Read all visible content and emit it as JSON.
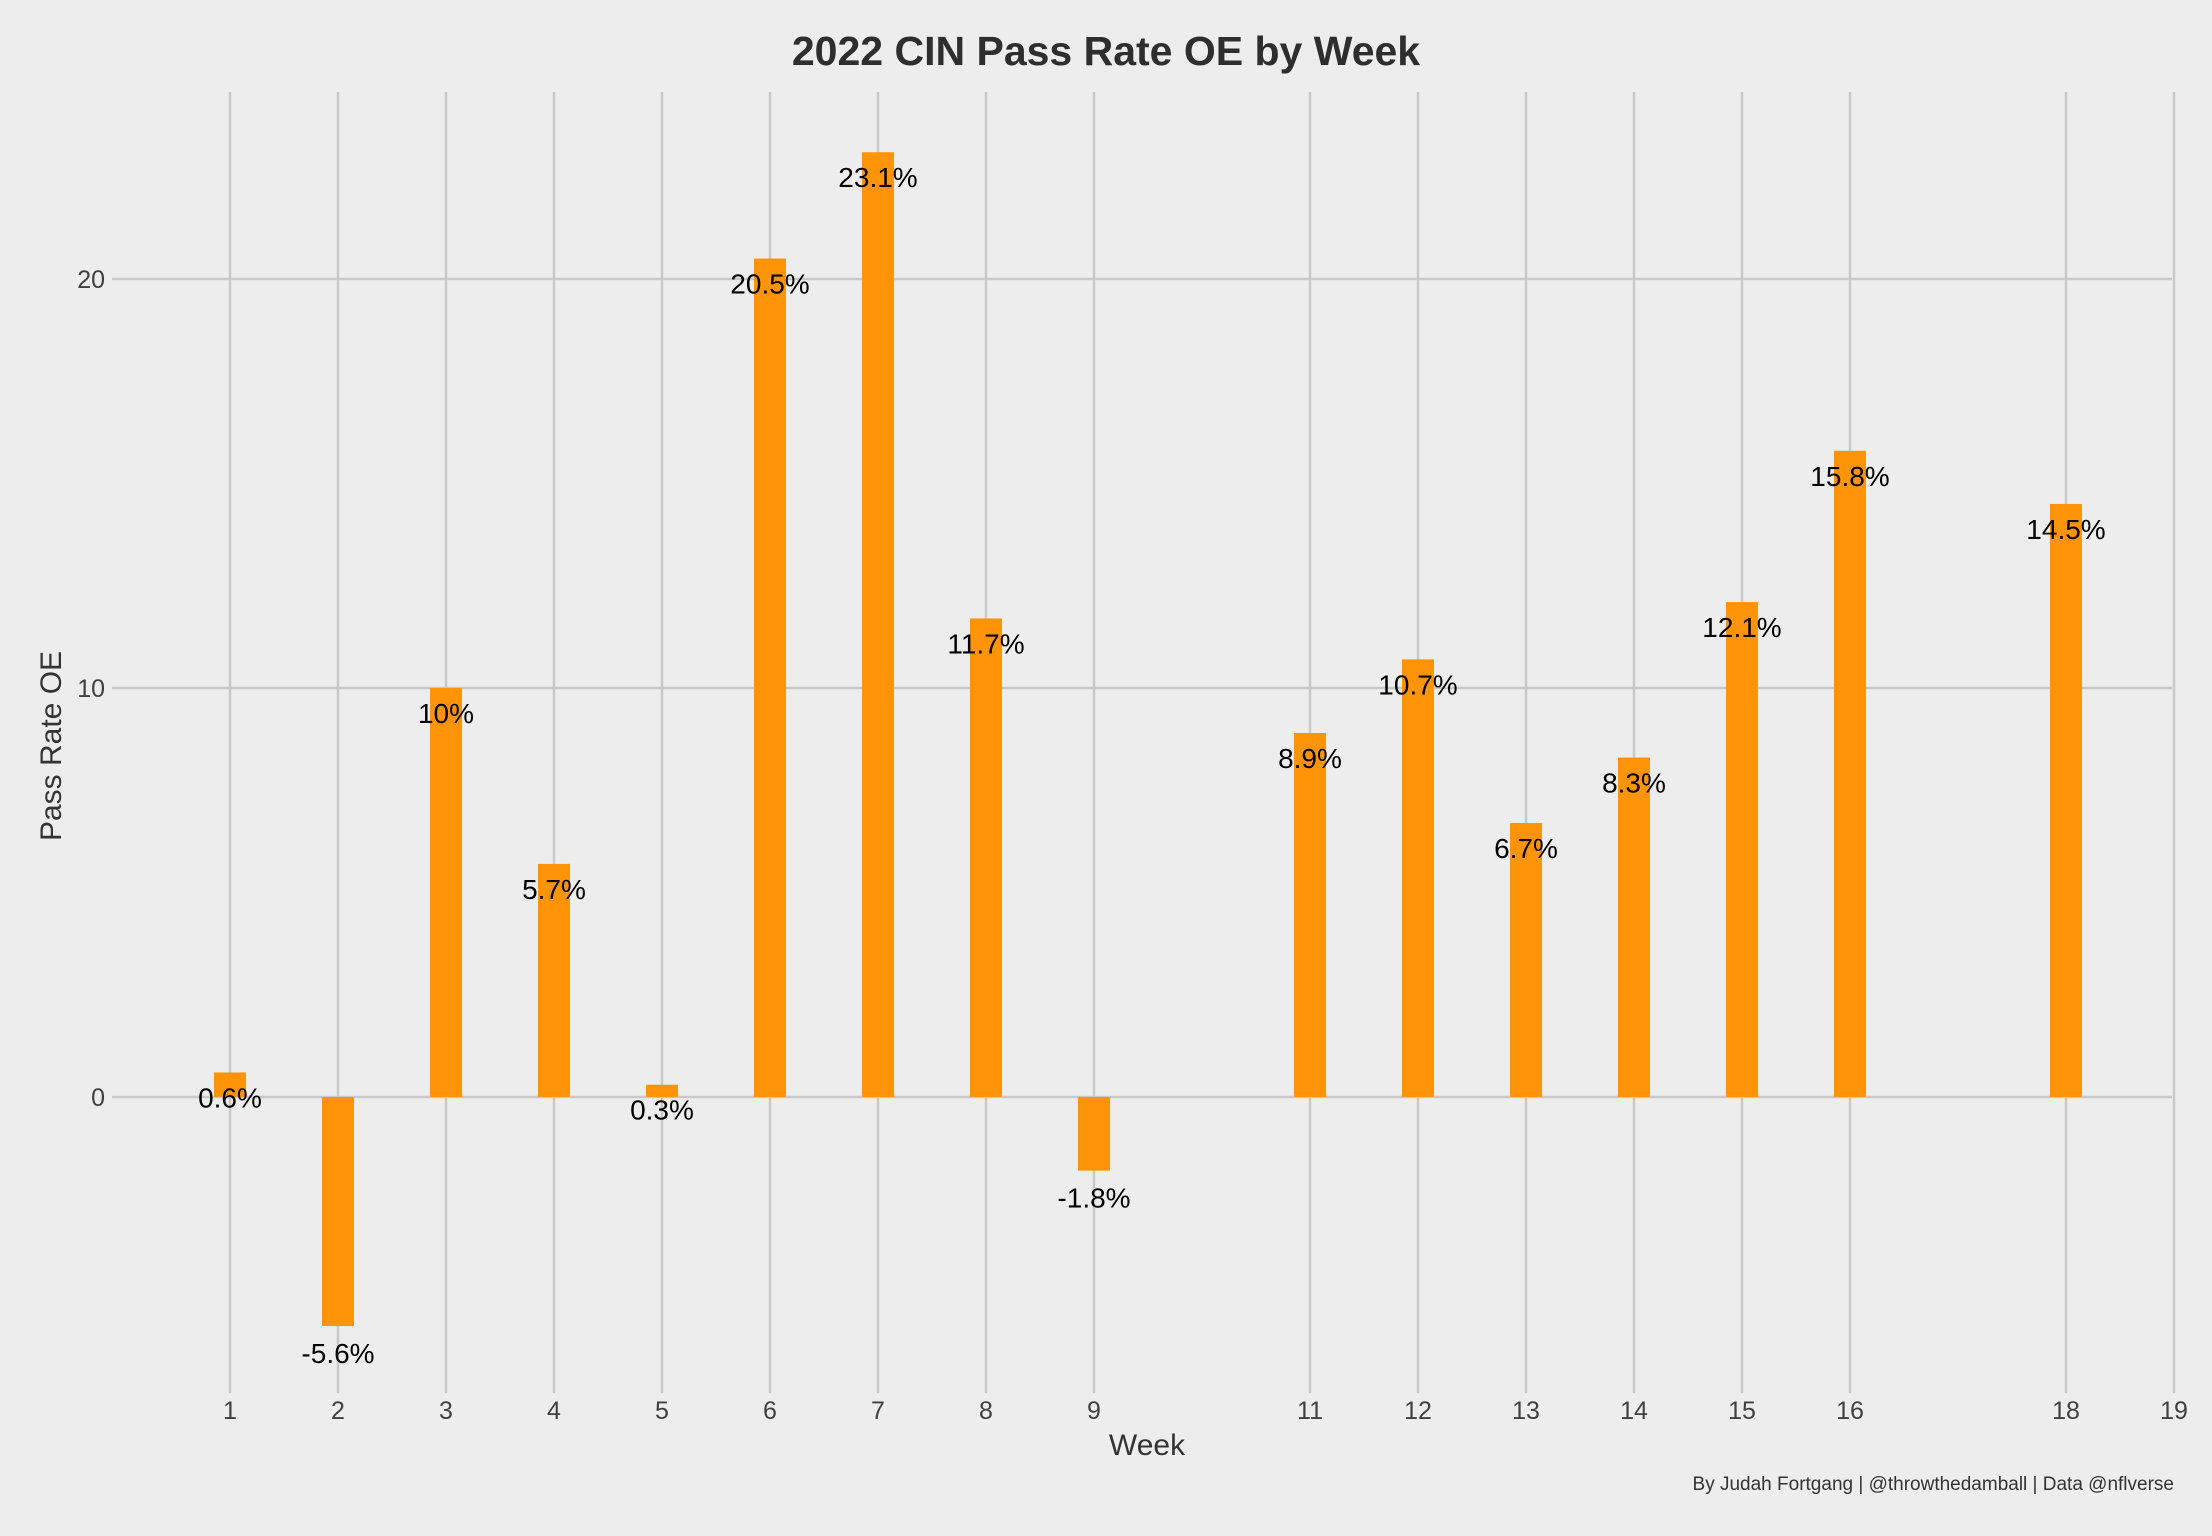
{
  "chart_data": {
    "type": "bar",
    "title": "2022 CIN Pass Rate OE by Week",
    "xlabel": "Week",
    "ylabel": "Pass Rate OE",
    "x": [
      1,
      2,
      3,
      4,
      5,
      6,
      7,
      8,
      9,
      11,
      12,
      13,
      14,
      15,
      16,
      18
    ],
    "values": [
      0.6,
      -5.6,
      10,
      5.7,
      0.3,
      20.5,
      23.1,
      11.7,
      -1.8,
      8.9,
      10.7,
      6.7,
      8.3,
      12.1,
      15.8,
      14.5
    ],
    "labels": [
      "0.6%",
      "-5.6%",
      "10%",
      "5.7%",
      "0.3%",
      "20.5%",
      "23.1%",
      "11.7%",
      "-1.8%",
      "8.9%",
      "10.7%",
      "6.7%",
      "8.3%",
      "12.1%",
      "15.8%",
      "14.5%"
    ],
    "x_ticks": [
      "1",
      "2",
      "3",
      "4",
      "5",
      "6",
      "7",
      "8",
      "9",
      "11",
      "12",
      "13",
      "14",
      "15",
      "16",
      "18",
      "19"
    ],
    "y_ticks": [
      "0",
      "10",
      "20"
    ],
    "xlim": [
      0,
      19
    ],
    "ylim": [
      -7.2,
      26.2
    ],
    "grid": true,
    "bar_color": "#ff9409",
    "background_color": "#ededed",
    "grid_color": "#c9c9c9"
  },
  "caption": "By Judah Fortgang | @throwthedamball | Data @nflverse"
}
